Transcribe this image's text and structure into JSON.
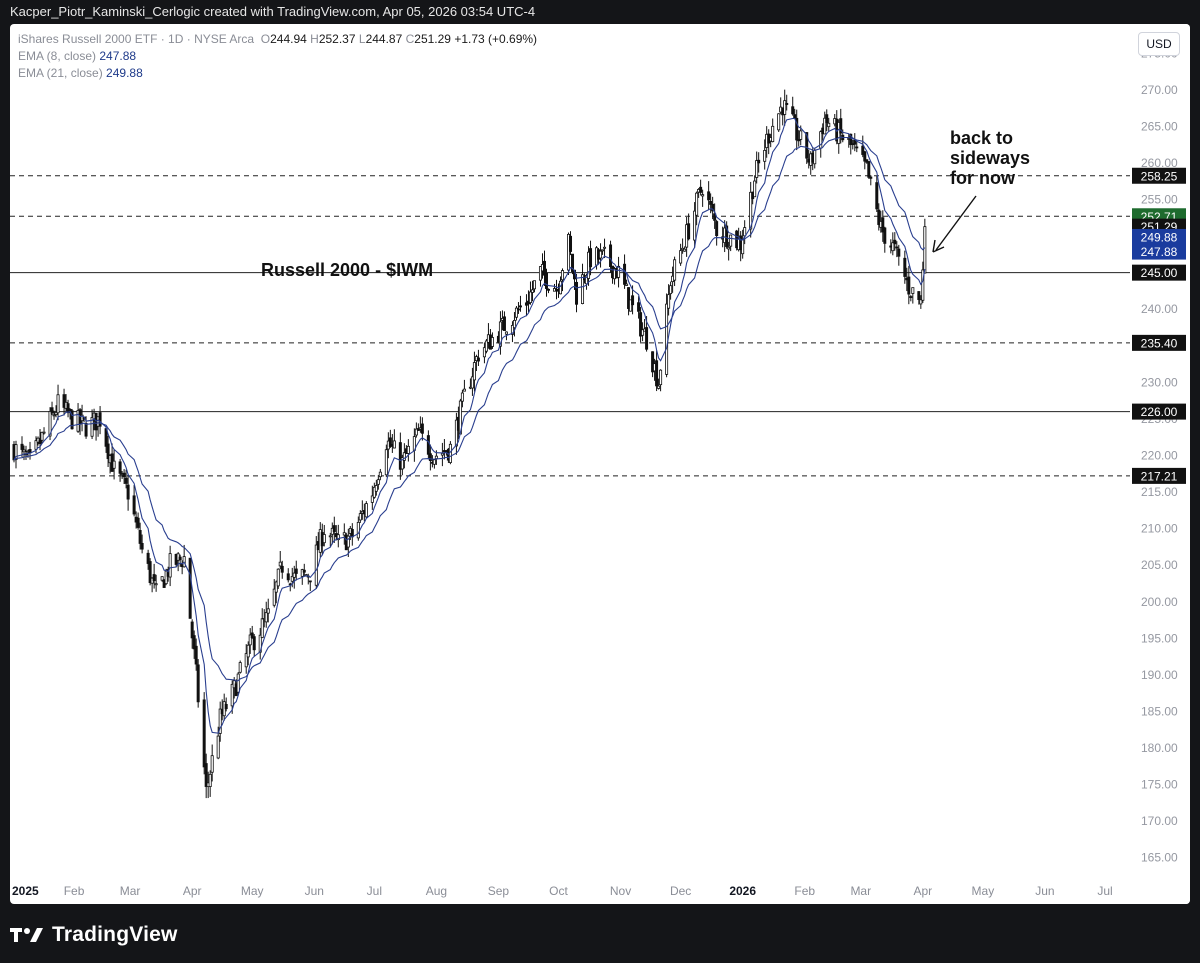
{
  "header": {
    "text": "Kacper_Piotr_Kaminski_Cerlogic created with TradingView.com, Apr 05, 2026 03:54 UTC-4"
  },
  "legend": {
    "title": "iShares Russell 2000 ETF · 1D · NYSE Arca",
    "ohlc": [
      {
        "label": "O",
        "value": "244.94"
      },
      {
        "label": "H",
        "value": "252.37"
      },
      {
        "label": "L",
        "value": "244.87"
      },
      {
        "label": "C",
        "value": "251.29"
      }
    ],
    "change": "+1.73 (+0.69%)",
    "ema8_label": "EMA (8, close)",
    "ema8_value": "247.88",
    "ema21_label": "EMA (21, close)",
    "ema21_value": "249.88"
  },
  "currency": "USD",
  "footer": {
    "logo_text": "TradingView"
  },
  "colors": {
    "candle": "#111111",
    "ema": "#2a3f8f",
    "green_tag": "#1e6b2e",
    "blue_tag": "#1a3c9e",
    "black_tag": "#111111"
  },
  "chart_data": {
    "type": "candlestick",
    "title": "Russell 2000 - $IWM",
    "annotation": [
      "back to",
      "sideways",
      "for now"
    ],
    "yticks": [
      "165.00",
      "170.00",
      "175.00",
      "180.00",
      "185.00",
      "190.00",
      "195.00",
      "200.00",
      "205.00",
      "210.00",
      "215.00",
      "220.00",
      "225.00",
      "230.00",
      "235.00",
      "240.00",
      "245.00",
      "250.00",
      "255.00",
      "260.00",
      "265.00",
      "270.00",
      "275.00"
    ],
    "ylim": [
      162.5,
      279
    ],
    "xticks": [
      {
        "label": "2025",
        "bold": true,
        "x": [
          2025,
          1,
          1
        ]
      },
      {
        "label": "Feb",
        "x": [
          2025,
          2,
          1
        ]
      },
      {
        "label": "Mar",
        "x": [
          2025,
          3,
          1
        ]
      },
      {
        "label": "Apr",
        "x": [
          2025,
          4,
          1
        ]
      },
      {
        "label": "May",
        "x": [
          2025,
          5,
          1
        ]
      },
      {
        "label": "Jun",
        "x": [
          2025,
          6,
          1
        ]
      },
      {
        "label": "Jul",
        "x": [
          2025,
          7,
          1
        ]
      },
      {
        "label": "Aug",
        "x": [
          2025,
          8,
          1
        ]
      },
      {
        "label": "Sep",
        "x": [
          2025,
          9,
          1
        ]
      },
      {
        "label": "Oct",
        "x": [
          2025,
          10,
          1
        ]
      },
      {
        "label": "Nov",
        "x": [
          2025,
          11,
          1
        ]
      },
      {
        "label": "Dec",
        "x": [
          2025,
          12,
          1
        ]
      },
      {
        "label": "2026",
        "bold": true,
        "x": [
          2026,
          1,
          1
        ]
      },
      {
        "label": "Feb",
        "x": [
          2026,
          2,
          1
        ]
      },
      {
        "label": "Mar",
        "x": [
          2026,
          3,
          1
        ]
      },
      {
        "label": "Apr",
        "x": [
          2026,
          4,
          1
        ]
      },
      {
        "label": "May",
        "x": [
          2026,
          5,
          1
        ]
      },
      {
        "label": "Jun",
        "x": [
          2026,
          6,
          1
        ]
      },
      {
        "label": "Jul",
        "x": [
          2026,
          7,
          1
        ]
      }
    ],
    "levels": [
      {
        "value": 258.25,
        "label": "258.25",
        "style": "dashed"
      },
      {
        "value": 252.71,
        "label": "252.71",
        "style": "dashed",
        "tag": "green"
      },
      {
        "value": 245.0,
        "label": "245.00",
        "style": "solid"
      },
      {
        "value": 235.4,
        "label": "235.40",
        "style": "dashed"
      },
      {
        "value": 226.0,
        "label": "226.00",
        "style": "solid"
      },
      {
        "value": 217.21,
        "label": "217.21",
        "style": "dashed"
      }
    ],
    "price_tags": [
      {
        "value": 251.29,
        "label": "251.29",
        "color": "black"
      },
      {
        "value": 249.88,
        "label": "249.88",
        "color": "blue"
      },
      {
        "value": 247.88,
        "label": "247.88",
        "color": "blue"
      }
    ],
    "closes": [
      {
        "date": "2025-01-02",
        "close": 221
      },
      {
        "date": "2025-01-10",
        "close": 219
      },
      {
        "date": "2025-01-17",
        "close": 223
      },
      {
        "date": "2025-01-24",
        "close": 227
      },
      {
        "date": "2025-01-31",
        "close": 225
      },
      {
        "date": "2025-02-07",
        "close": 224
      },
      {
        "date": "2025-02-14",
        "close": 225
      },
      {
        "date": "2025-02-21",
        "close": 218
      },
      {
        "date": "2025-02-28",
        "close": 215
      },
      {
        "date": "2025-03-07",
        "close": 207
      },
      {
        "date": "2025-03-14",
        "close": 201
      },
      {
        "date": "2025-03-21",
        "close": 205
      },
      {
        "date": "2025-03-28",
        "close": 206
      },
      {
        "date": "2025-04-03",
        "close": 190
      },
      {
        "date": "2025-04-08",
        "close": 174
      },
      {
        "date": "2025-04-15",
        "close": 184
      },
      {
        "date": "2025-04-22",
        "close": 188
      },
      {
        "date": "2025-04-30",
        "close": 194
      },
      {
        "date": "2025-05-09",
        "close": 198
      },
      {
        "date": "2025-05-16",
        "close": 205
      },
      {
        "date": "2025-05-23",
        "close": 203
      },
      {
        "date": "2025-05-30",
        "close": 204
      },
      {
        "date": "2025-06-06",
        "close": 210
      },
      {
        "date": "2025-06-13",
        "close": 208
      },
      {
        "date": "2025-06-20",
        "close": 209
      },
      {
        "date": "2025-06-30",
        "close": 215
      },
      {
        "date": "2025-07-07",
        "close": 222
      },
      {
        "date": "2025-07-15",
        "close": 219
      },
      {
        "date": "2025-07-23",
        "close": 223
      },
      {
        "date": "2025-07-31",
        "close": 220
      },
      {
        "date": "2025-08-08",
        "close": 221
      },
      {
        "date": "2025-08-15",
        "close": 228
      },
      {
        "date": "2025-08-22",
        "close": 234
      },
      {
        "date": "2025-08-29",
        "close": 236
      },
      {
        "date": "2025-09-08",
        "close": 239
      },
      {
        "date": "2025-09-15",
        "close": 241
      },
      {
        "date": "2025-09-22",
        "close": 245
      },
      {
        "date": "2025-09-30",
        "close": 243
      },
      {
        "date": "2025-10-06",
        "close": 249
      },
      {
        "date": "2025-10-10",
        "close": 242
      },
      {
        "date": "2025-10-17",
        "close": 247
      },
      {
        "date": "2025-10-24",
        "close": 247
      },
      {
        "date": "2025-10-31",
        "close": 245
      },
      {
        "date": "2025-11-07",
        "close": 240
      },
      {
        "date": "2025-11-14",
        "close": 236
      },
      {
        "date": "2025-11-20",
        "close": 230
      },
      {
        "date": "2025-11-26",
        "close": 244
      },
      {
        "date": "2025-12-05",
        "close": 251
      },
      {
        "date": "2025-12-12",
        "close": 257
      },
      {
        "date": "2025-12-19",
        "close": 251
      },
      {
        "date": "2025-12-31",
        "close": 249
      },
      {
        "date": "2026-01-07",
        "close": 258
      },
      {
        "date": "2026-01-14",
        "close": 264
      },
      {
        "date": "2026-01-21",
        "close": 268
      },
      {
        "date": "2026-01-28",
        "close": 264
      },
      {
        "date": "2026-02-04",
        "close": 260
      },
      {
        "date": "2026-02-11",
        "close": 266
      },
      {
        "date": "2026-02-18",
        "close": 264
      },
      {
        "date": "2026-02-25",
        "close": 262
      },
      {
        "date": "2026-03-04",
        "close": 259
      },
      {
        "date": "2026-03-11",
        "close": 251
      },
      {
        "date": "2026-03-18",
        "close": 248
      },
      {
        "date": "2026-03-25",
        "close": 243
      },
      {
        "date": "2026-03-31",
        "close": 241
      },
      {
        "date": "2026-04-02",
        "close": 251
      }
    ]
  }
}
